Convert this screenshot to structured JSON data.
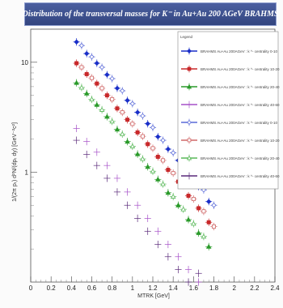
{
  "chart_data": {
    "type": "scatter",
    "title": "Distribution of the transversal masses for K⁻ in Au+Au 200 AGeV BRAHMS",
    "xlabel": "MTRK [GeV]",
    "ylabel": "1/(2π pₜ) d²N/(dpₜ dy) [GeV⁻²c²]",
    "xlim": [
      0,
      2.4
    ],
    "ylim": [
      0.1,
      20
    ],
    "yscale": "log",
    "x_ticks": [
      "0",
      "0.2",
      "0.4",
      "0.6",
      "0.8",
      "1",
      "1.2",
      "1.4",
      "1.6",
      "1.8",
      "2",
      "2.2",
      "2.4"
    ],
    "y_ticks": [
      "1",
      "10"
    ],
    "grid": false,
    "legend": {
      "title": "Legend",
      "position": "right",
      "entries": [
        {
          "label": "BRAHMS Au+Au 200AGeV : k  ^- centrality 0-10",
          "color": "#1a2fc8",
          "marker": "filled-diamond"
        },
        {
          "label": "BRAHMS Au+Au 200AGeV : k  ^- centrality 10-20",
          "color": "#c8282a",
          "marker": "filled-square"
        },
        {
          "label": "BRAHMS Au+Au 200AGeV : k  ^- centrality 20-40",
          "color": "#2a9a2a",
          "marker": "filled-triangle"
        },
        {
          "label": "BRAHMS Au+Au 200AGeV : k  ^- centrality 40-60",
          "color": "#a650c8",
          "marker": "cross"
        },
        {
          "label": "BRAHMS Au+Au 200AGeV : k  ^- centrality 0-10",
          "color": "#5a6ad8",
          "marker": "open-diamond"
        },
        {
          "label": "BRAHMS Au+Au 200AGeV : k  ^- centrality 10-20",
          "color": "#d06868",
          "marker": "open-square"
        },
        {
          "label": "BRAHMS Au+Au 200AGeV : k  ^- centrality 20-40",
          "color": "#58b858",
          "marker": "open-triangle"
        },
        {
          "label": "BRAHMS Au+Au 200AGeV : k  ^- centrality 40-60",
          "color": "#5a2a7a",
          "marker": "cross"
        }
      ]
    },
    "series": [
      {
        "x": [
          0.45,
          0.55,
          0.65,
          0.75,
          0.85,
          0.95,
          1.05,
          1.15,
          1.25,
          1.35,
          1.45,
          1.55,
          1.65,
          1.75
        ],
        "y": [
          15.3,
          12.0,
          9.8,
          7.7,
          5.8,
          4.5,
          3.5,
          2.76,
          2.1,
          1.62,
          1.28,
          0.96,
          0.74,
          0.54
        ]
      },
      {
        "x": [
          0.45,
          0.55,
          0.65,
          0.75,
          0.85,
          0.95,
          1.05,
          1.15,
          1.25,
          1.35,
          1.45,
          1.55,
          1.65,
          1.75
        ],
        "y": [
          9.8,
          7.8,
          6.4,
          5.0,
          3.8,
          3.0,
          2.3,
          1.8,
          1.38,
          1.05,
          0.82,
          0.61,
          0.47,
          0.35
        ]
      },
      {
        "x": [
          0.45,
          0.55,
          0.65,
          0.75,
          0.85,
          0.95,
          1.05,
          1.15,
          1.25,
          1.35,
          1.45,
          1.55,
          1.65,
          1.75
        ],
        "y": [
          6.5,
          5.2,
          4.1,
          3.2,
          2.45,
          1.9,
          1.46,
          1.12,
          0.86,
          0.65,
          0.5,
          0.37,
          0.28,
          0.21
        ]
      },
      {
        "x": [
          0.45,
          0.55,
          0.65,
          0.75,
          0.85,
          0.95,
          1.05,
          1.15,
          1.25,
          1.35,
          1.45,
          1.55,
          1.65
        ],
        "y": [
          2.5,
          1.9,
          1.52,
          1.15,
          0.88,
          0.66,
          0.5,
          0.38,
          0.29,
          0.22,
          0.17,
          0.13,
          0.1
        ]
      },
      {
        "x": [
          0.5,
          0.6,
          0.7,
          0.8,
          0.9,
          1.0,
          1.1,
          1.2,
          1.3,
          1.4,
          1.5,
          1.6,
          1.7,
          1.8
        ],
        "y": [
          14.2,
          11.2,
          9.0,
          7.1,
          5.5,
          4.2,
          3.25,
          2.55,
          1.95,
          1.5,
          1.18,
          0.9,
          0.69,
          0.5
        ]
      },
      {
        "x": [
          0.5,
          0.6,
          0.7,
          0.8,
          0.9,
          1.0,
          1.1,
          1.2,
          1.3,
          1.4,
          1.5,
          1.6,
          1.7,
          1.8
        ],
        "y": [
          9.0,
          7.2,
          5.8,
          4.6,
          3.5,
          2.75,
          2.12,
          1.65,
          1.28,
          0.98,
          0.76,
          0.57,
          0.44,
          0.32
        ]
      },
      {
        "x": [
          0.5,
          0.6,
          0.7,
          0.8,
          0.9,
          1.0,
          1.1,
          1.2,
          1.3,
          1.4,
          1.5,
          1.6,
          1.7
        ],
        "y": [
          5.9,
          4.6,
          3.7,
          2.9,
          2.22,
          1.72,
          1.32,
          1.02,
          0.78,
          0.6,
          0.46,
          0.34,
          0.26
        ]
      },
      {
        "x": [
          0.45,
          0.55,
          0.65,
          0.75,
          0.85,
          0.95,
          1.05,
          1.15,
          1.25,
          1.35,
          1.45,
          1.55,
          1.65
        ],
        "y": [
          1.95,
          1.45,
          1.15,
          0.88,
          0.66,
          0.5,
          0.38,
          0.29,
          0.22,
          0.17,
          0.13,
          0.1,
          0.12
        ]
      }
    ]
  }
}
